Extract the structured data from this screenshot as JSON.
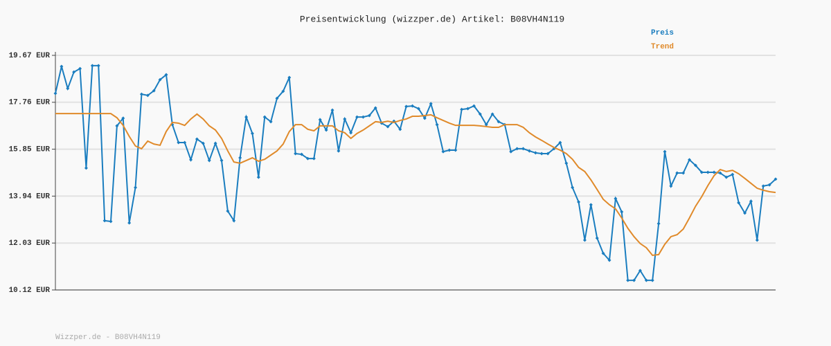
{
  "chart_data": {
    "type": "line",
    "title": "Preisentwicklung (wizzper.de) Artikel: B08VH4N119",
    "footer": "Wizzper.de - B08VH4N119",
    "ylim": [
      10.12,
      19.67
    ],
    "yticks": [
      {
        "value": 10.12,
        "label": "10.12 EUR"
      },
      {
        "value": 12.03,
        "label": "12.03 EUR"
      },
      {
        "value": 13.94,
        "label": "13.94 EUR"
      },
      {
        "value": 15.85,
        "label": "15.85 EUR"
      },
      {
        "value": 17.76,
        "label": "17.76 EUR"
      },
      {
        "value": 19.67,
        "label": "19.67 EUR"
      }
    ],
    "grid": true,
    "series": [
      {
        "name": "Preis",
        "color": "#1a7dbf",
        "markers": true,
        "values": [
          18.12,
          19.22,
          18.32,
          18.99,
          19.13,
          15.08,
          19.25,
          19.25,
          12.94,
          12.91,
          16.8,
          17.11,
          12.85,
          14.29,
          18.09,
          18.04,
          18.23,
          18.68,
          18.88,
          16.85,
          16.12,
          16.12,
          15.42,
          16.26,
          16.09,
          15.39,
          16.09,
          15.39,
          13.33,
          12.94,
          15.5,
          17.16,
          16.49,
          14.71,
          17.16,
          16.97,
          17.92,
          18.21,
          18.77,
          15.67,
          15.64,
          15.47,
          15.47,
          17.05,
          16.63,
          17.44,
          15.78,
          17.08,
          16.52,
          17.16,
          17.16,
          17.22,
          17.53,
          16.91,
          16.77,
          16.99,
          16.66,
          17.59,
          17.61,
          17.5,
          17.11,
          17.7,
          16.85,
          15.75,
          15.81,
          15.81,
          17.47,
          17.5,
          17.61,
          17.28,
          16.85,
          17.28,
          16.97,
          16.85,
          15.75,
          15.87,
          15.87,
          15.78,
          15.7,
          15.67,
          15.67,
          15.87,
          16.12,
          15.28,
          14.29,
          13.7,
          12.15,
          13.59,
          12.23,
          11.61,
          11.33,
          13.84,
          13.3,
          10.51,
          10.51,
          10.91,
          10.51,
          10.51,
          12.82,
          15.75,
          14.35,
          14.88,
          14.88,
          15.42,
          15.19,
          14.91,
          14.91,
          14.91,
          14.88,
          14.71,
          14.82,
          13.67,
          13.25,
          13.73,
          12.15,
          14.35,
          14.4,
          14.63
        ]
      },
      {
        "name": "Trend",
        "color": "#e08a2a",
        "markers": false,
        "values": [
          17.3,
          17.3,
          17.3,
          17.3,
          17.3,
          17.3,
          17.3,
          17.3,
          17.3,
          17.3,
          17.13,
          16.82,
          16.37,
          15.98,
          15.87,
          16.18,
          16.06,
          16.01,
          16.57,
          16.94,
          16.91,
          16.82,
          17.08,
          17.28,
          17.08,
          16.8,
          16.63,
          16.29,
          15.78,
          15.33,
          15.28,
          15.39,
          15.5,
          15.36,
          15.44,
          15.61,
          15.78,
          16.06,
          16.57,
          16.85,
          16.85,
          16.66,
          16.6,
          16.8,
          16.8,
          16.8,
          16.6,
          16.52,
          16.29,
          16.49,
          16.63,
          16.8,
          16.97,
          16.94,
          16.99,
          16.94,
          17.02,
          17.08,
          17.19,
          17.19,
          17.22,
          17.25,
          17.13,
          17.02,
          16.91,
          16.82,
          16.82,
          16.82,
          16.82,
          16.8,
          16.77,
          16.74,
          16.74,
          16.85,
          16.85,
          16.85,
          16.74,
          16.52,
          16.35,
          16.21,
          16.06,
          15.92,
          15.81,
          15.67,
          15.44,
          15.11,
          14.94,
          14.6,
          14.21,
          13.81,
          13.59,
          13.42,
          13.05,
          12.63,
          12.29,
          12.01,
          11.84,
          11.53,
          11.56,
          11.98,
          12.29,
          12.37,
          12.6,
          13.05,
          13.53,
          13.92,
          14.37,
          14.77,
          15.02,
          14.94,
          14.99,
          14.85,
          14.66,
          14.46,
          14.26,
          14.18,
          14.12,
          14.09
        ]
      }
    ]
  }
}
